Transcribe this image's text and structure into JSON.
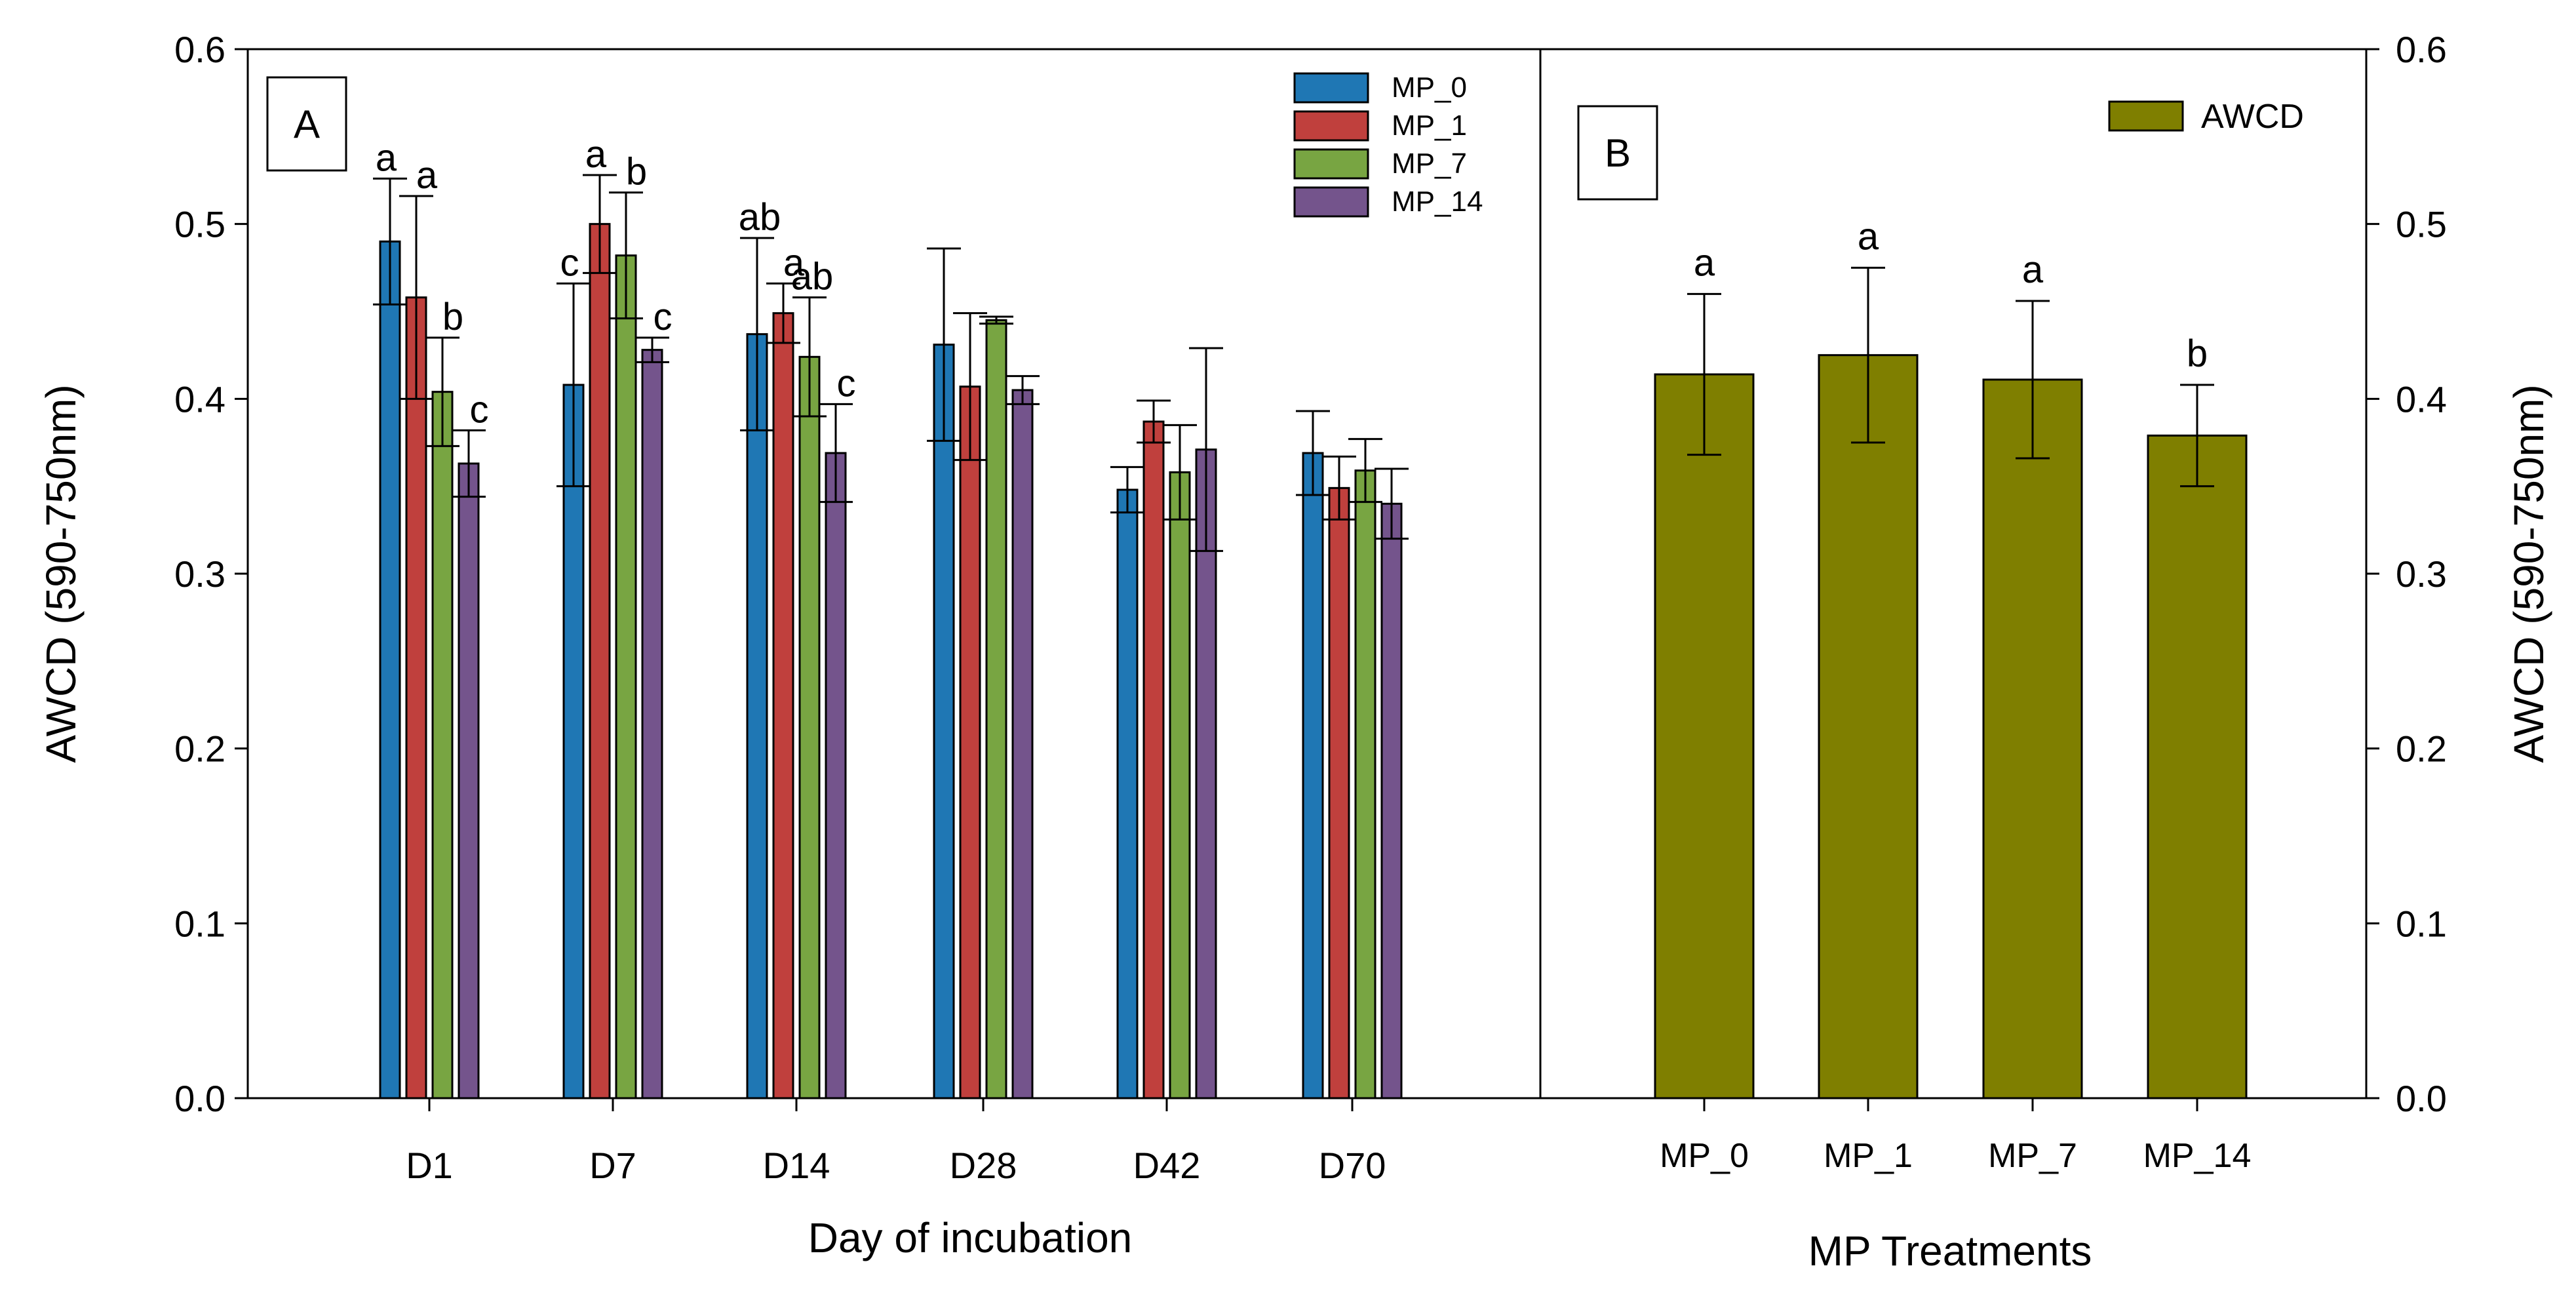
{
  "chart_data": [
    {
      "panel": "A",
      "type": "bar",
      "panel_label": "A",
      "xlabel": "Day of incubation",
      "ylabel": "AWCD (590-750nm)",
      "ylim": [
        0,
        0.6
      ],
      "yticks": [
        "0.0",
        "0.1",
        "0.2",
        "0.3",
        "0.4",
        "0.5",
        "0.6"
      ],
      "categories": [
        "D1",
        "D7",
        "D14",
        "D28",
        "D42",
        "D70"
      ],
      "legend_position": "top-right",
      "series": [
        {
          "name": "MP_0",
          "color": "#1f77b4",
          "values": [
            0.49,
            0.408,
            0.437,
            0.431,
            0.348,
            0.369
          ],
          "errors": [
            0.036,
            0.058,
            0.055,
            0.055,
            0.013,
            0.024
          ],
          "labels": [
            "a",
            "c",
            "ab",
            "",
            "",
            ""
          ]
        },
        {
          "name": "MP_1",
          "color": "#c0403d",
          "values": [
            0.458,
            0.5,
            0.449,
            0.407,
            0.387,
            0.349
          ],
          "errors": [
            0.058,
            0.028,
            0.017,
            0.042,
            0.012,
            0.018
          ],
          "labels": [
            "a",
            "a",
            "a",
            "",
            "",
            ""
          ]
        },
        {
          "name": "MP_7",
          "color": "#78a542",
          "values": [
            0.404,
            0.482,
            0.424,
            0.445,
            0.358,
            0.359
          ],
          "errors": [
            0.031,
            0.036,
            0.034,
            0.002,
            0.027,
            0.018
          ],
          "labels": [
            "b",
            "b",
            "ab",
            "",
            "",
            ""
          ]
        },
        {
          "name": "MP_14",
          "color": "#74548c",
          "values": [
            0.363,
            0.428,
            0.369,
            0.405,
            0.371,
            0.34
          ],
          "errors": [
            0.019,
            0.007,
            0.028,
            0.008,
            0.058,
            0.02
          ],
          "labels": [
            "c",
            "c",
            "c",
            "",
            "",
            ""
          ]
        }
      ]
    },
    {
      "panel": "B",
      "type": "bar",
      "panel_label": "B",
      "xlabel": "MP Treatments",
      "ylabel": "AWCD (590-750nm)",
      "ylim": [
        0,
        0.6
      ],
      "yticks": [
        "0.0",
        "0.1",
        "0.2",
        "0.3",
        "0.4",
        "0.5",
        "0.6"
      ],
      "categories": [
        "MP_0",
        "MP_1",
        "MP_7",
        "MP_14"
      ],
      "legend_position": "top-right",
      "series": [
        {
          "name": "AWCD",
          "color": "#7f7f00",
          "values": [
            0.414,
            0.425,
            0.411,
            0.379
          ],
          "errors": [
            0.046,
            0.05,
            0.045,
            0.029
          ],
          "labels": [
            "a",
            "a",
            "a",
            "b"
          ]
        }
      ]
    }
  ]
}
